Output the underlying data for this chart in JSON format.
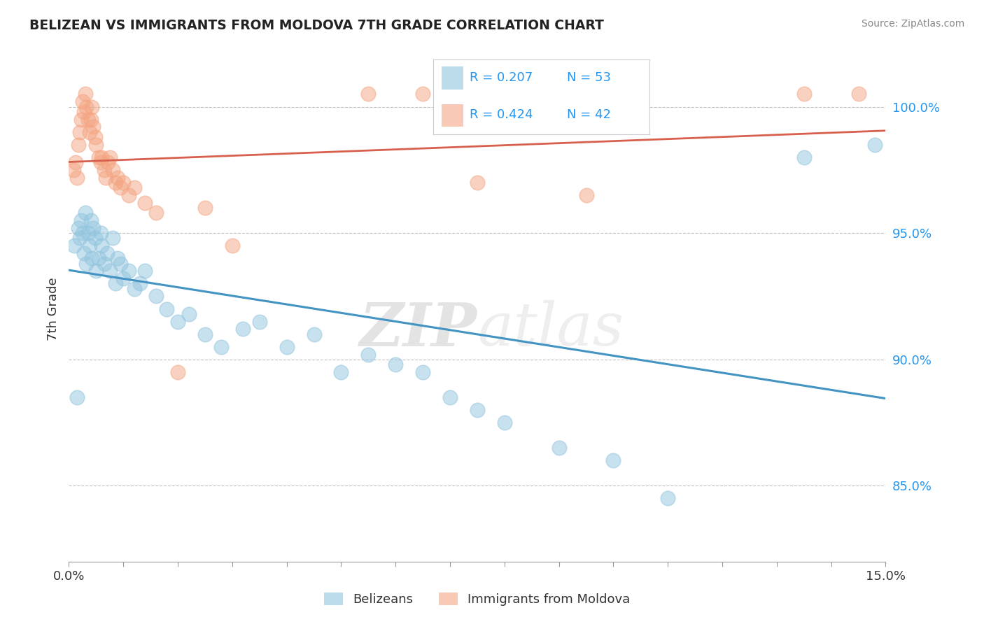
{
  "title": "BELIZEAN VS IMMIGRANTS FROM MOLDOVA 7TH GRADE CORRELATION CHART",
  "source_text": "Source: ZipAtlas.com",
  "ylabel": "7th Grade",
  "xmin": 0.0,
  "xmax": 15.0,
  "ymin": 82.0,
  "ymax": 102.0,
  "yticks": [
    85.0,
    90.0,
    95.0,
    100.0
  ],
  "ytick_labels": [
    "85.0%",
    "90.0%",
    "95.0%",
    "100.0%"
  ],
  "legend_r1": "0.207",
  "legend_n1": "53",
  "legend_r2": "0.424",
  "legend_n2": "42",
  "blue_color": "#92c5de",
  "pink_color": "#f4a582",
  "blue_line_color": "#4393c3",
  "pink_line_color": "#d6604d",
  "legend_r_color": "#2196F3",
  "watermark_zip": "ZIP",
  "watermark_atlas": "atlas",
  "blue_scatter_x": [
    0.1,
    0.15,
    0.18,
    0.2,
    0.22,
    0.25,
    0.28,
    0.3,
    0.32,
    0.35,
    0.38,
    0.4,
    0.42,
    0.45,
    0.48,
    0.5,
    0.55,
    0.58,
    0.6,
    0.65,
    0.7,
    0.75,
    0.8,
    0.85,
    0.9,
    0.95,
    1.0,
    1.1,
    1.2,
    1.3,
    1.4,
    1.6,
    1.8,
    2.0,
    2.2,
    2.5,
    2.8,
    3.2,
    3.5,
    4.0,
    4.5,
    5.0,
    5.5,
    6.0,
    6.5,
    7.0,
    7.5,
    8.0,
    9.0,
    10.0,
    11.0,
    13.5,
    14.8
  ],
  "blue_scatter_y": [
    94.5,
    88.5,
    95.2,
    94.8,
    95.5,
    95.0,
    94.2,
    95.8,
    93.8,
    95.0,
    94.5,
    95.5,
    94.0,
    95.2,
    94.8,
    93.5,
    94.0,
    95.0,
    94.5,
    93.8,
    94.2,
    93.5,
    94.8,
    93.0,
    94.0,
    93.8,
    93.2,
    93.5,
    92.8,
    93.0,
    93.5,
    92.5,
    92.0,
    91.5,
    91.8,
    91.0,
    90.5,
    91.2,
    91.5,
    90.5,
    91.0,
    89.5,
    90.2,
    89.8,
    89.5,
    88.5,
    88.0,
    87.5,
    86.5,
    86.0,
    84.5,
    98.0,
    98.5
  ],
  "pink_scatter_x": [
    0.08,
    0.12,
    0.15,
    0.18,
    0.2,
    0.22,
    0.25,
    0.28,
    0.3,
    0.32,
    0.35,
    0.38,
    0.4,
    0.42,
    0.45,
    0.48,
    0.5,
    0.55,
    0.58,
    0.6,
    0.65,
    0.68,
    0.72,
    0.75,
    0.8,
    0.85,
    0.9,
    0.95,
    1.0,
    1.1,
    1.2,
    1.4,
    1.6,
    2.0,
    2.5,
    3.0,
    5.5,
    6.5,
    7.5,
    9.5,
    13.5,
    14.5
  ],
  "pink_scatter_y": [
    97.5,
    97.8,
    97.2,
    98.5,
    99.0,
    99.5,
    100.2,
    99.8,
    100.5,
    100.0,
    99.5,
    99.0,
    99.5,
    100.0,
    99.2,
    98.8,
    98.5,
    98.0,
    97.8,
    98.0,
    97.5,
    97.2,
    97.8,
    98.0,
    97.5,
    97.0,
    97.2,
    96.8,
    97.0,
    96.5,
    96.8,
    96.2,
    95.8,
    89.5,
    96.0,
    94.5,
    100.5,
    100.5,
    97.0,
    96.5,
    100.5,
    100.5
  ]
}
